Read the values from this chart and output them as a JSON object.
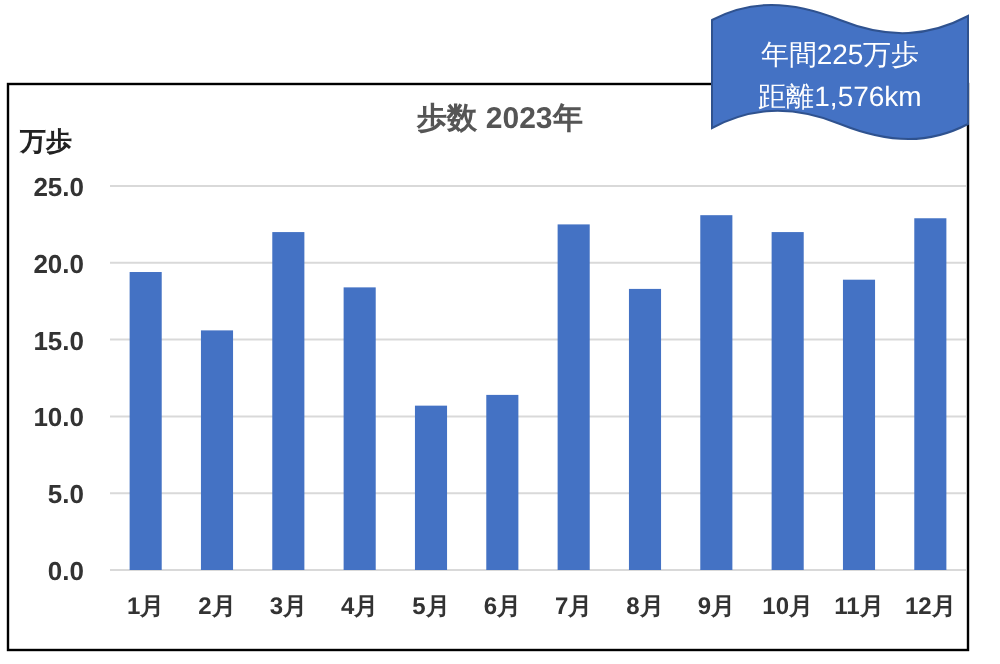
{
  "chart_data": {
    "type": "bar",
    "title": "歩数 2023年",
    "ylabel": "万歩",
    "categories": [
      "1月",
      "2月",
      "3月",
      "4月",
      "5月",
      "6月",
      "7月",
      "8月",
      "9月",
      "10月",
      "11月",
      "12月"
    ],
    "values": [
      19.4,
      15.6,
      22.0,
      18.4,
      10.7,
      11.4,
      22.5,
      18.3,
      23.1,
      22.0,
      18.9,
      22.9
    ],
    "color": "#4472c4",
    "ylim": [
      0,
      25
    ],
    "yticks": [
      {
        "value": 0,
        "label": "0.0"
      },
      {
        "value": 5,
        "label": "5.0"
      },
      {
        "value": 10,
        "label": "10.0"
      },
      {
        "value": 15,
        "label": "15.0"
      },
      {
        "value": 20,
        "label": "20.0"
      },
      {
        "value": 25,
        "label": "25.0"
      }
    ],
    "grid": "y",
    "annotations": [
      "年間225万歩",
      "距離1,576km"
    ]
  }
}
